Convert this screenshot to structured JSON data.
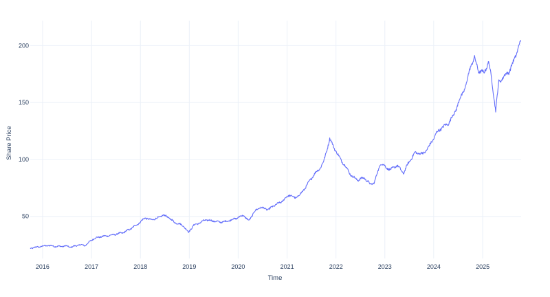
{
  "chart_data": {
    "type": "line",
    "title": "",
    "xlabel": "Time",
    "ylabel": "Share Price",
    "x_range": [
      "2015-10-01",
      "2025-10-15"
    ],
    "ylim": [
      13,
      222
    ],
    "x_ticks": [
      "2016",
      "2017",
      "2018",
      "2019",
      "2020",
      "2021",
      "2022",
      "2023",
      "2024",
      "2025"
    ],
    "y_ticks": [
      50,
      100,
      150,
      200
    ],
    "grid": true,
    "line_color": "#636efa",
    "series": [
      {
        "x": [
          "2015-10-01",
          "2015-12-15",
          "2016-02-10",
          "2016-04-20",
          "2016-06-20",
          "2016-08-01",
          "2016-10-01",
          "2016-11-15",
          "2017-01-10",
          "2017-03-01",
          "2017-06-01",
          "2017-09-01",
          "2017-11-01",
          "2018-01-01",
          "2018-02-05",
          "2018-03-10",
          "2018-05-01",
          "2018-06-15",
          "2018-07-20",
          "2018-09-10",
          "2018-11-15",
          "2018-12-26",
          "2019-02-01",
          "2019-04-01",
          "2019-05-01",
          "2019-07-01",
          "2019-08-15",
          "2019-10-01",
          "2019-12-10",
          "2020-02-10",
          "2020-03-20",
          "2020-05-01",
          "2020-06-10",
          "2020-08-15",
          "2020-10-01",
          "2020-11-10",
          "2020-12-20",
          "2021-01-20",
          "2021-03-01",
          "2021-04-15",
          "2021-06-01",
          "2021-07-15",
          "2021-09-01",
          "2021-10-01",
          "2021-11-15",
          "2021-12-20",
          "2022-01-20",
          "2022-03-01",
          "2022-05-01",
          "2022-06-15",
          "2022-08-01",
          "2022-09-15",
          "2022-10-15",
          "2022-12-01",
          "2023-01-10",
          "2023-02-15",
          "2023-04-01",
          "2023-05-20",
          "2023-07-01",
          "2023-08-15",
          "2023-10-15",
          "2023-12-01",
          "2024-01-20",
          "2024-03-01",
          "2024-04-15",
          "2024-06-01",
          "2024-07-15",
          "2024-09-01",
          "2024-10-01",
          "2024-11-01",
          "2024-12-01",
          "2025-01-10",
          "2025-02-15",
          "2025-03-15",
          "2025-04-08",
          "2025-05-01",
          "2025-06-01",
          "2025-07-15",
          "2025-08-20",
          "2025-09-20",
          "2025-10-12"
        ],
        "y": [
          22,
          23.5,
          24.5,
          23.5,
          24,
          23,
          25,
          24.5,
          30,
          32,
          33.5,
          36,
          40,
          45,
          49,
          47,
          48,
          51,
          50,
          45,
          42,
          36,
          42,
          45,
          47,
          46,
          45,
          45.5,
          48,
          51,
          46,
          54,
          58,
          56,
          60,
          62,
          66,
          69,
          66,
          70,
          78,
          86,
          92,
          98,
          118,
          110,
          103,
          96,
          85,
          82,
          84,
          78,
          80,
          97,
          93,
          91,
          95,
          88,
          98,
          106,
          105,
          112,
          123,
          128,
          131,
          140,
          153,
          166,
          182,
          189,
          178,
          176,
          186,
          165,
          143,
          168,
          172,
          177,
          186,
          197,
          205
        ]
      }
    ]
  }
}
